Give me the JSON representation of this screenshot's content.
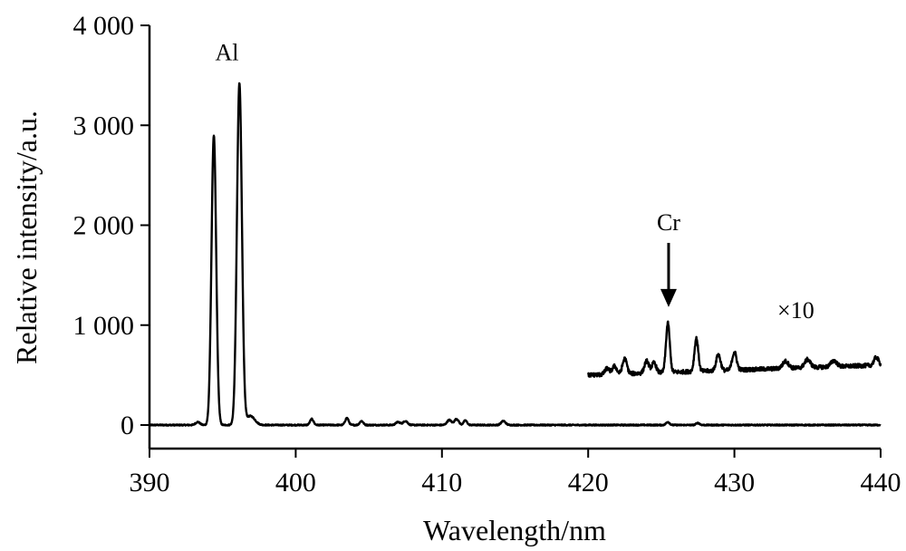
{
  "chart_data": {
    "type": "line",
    "xlabel": "Wavelength/nm",
    "ylabel": "Relative intensity/a.u.",
    "xlim": [
      390,
      440
    ],
    "ylim": [
      0,
      4000
    ],
    "x_ticks": [
      390,
      400,
      410,
      420,
      430,
      440
    ],
    "x_tick_labels": [
      "390",
      "400",
      "410",
      "420",
      "430",
      "440"
    ],
    "y_ticks": [
      0,
      1000,
      2000,
      3000,
      4000
    ],
    "y_tick_labels": [
      "0",
      "1 000",
      "2 000",
      "3 000",
      "4 000"
    ],
    "grid": false,
    "annotations": [
      {
        "text": "Al",
        "x": 395.3,
        "y": 3650
      },
      {
        "text": "Cr",
        "x": 425.5,
        "y": 1950,
        "arrow_to": {
          "x": 425.5,
          "y": 1180
        }
      },
      {
        "text": "×10",
        "x": 434.2,
        "y": 1070
      }
    ],
    "series": [
      {
        "baseline": 0,
        "peaks": [
          [
            393.3,
            30,
            0.15
          ],
          [
            394.4,
            2900,
            0.16
          ],
          [
            396.15,
            3420,
            0.17
          ],
          [
            396.9,
            90,
            0.3
          ],
          [
            401.1,
            60,
            0.12
          ],
          [
            403.5,
            70,
            0.12
          ],
          [
            404.5,
            40,
            0.12
          ],
          [
            407.0,
            30,
            0.15
          ],
          [
            407.5,
            40,
            0.15
          ],
          [
            410.5,
            50,
            0.15
          ],
          [
            411.0,
            60,
            0.15
          ],
          [
            411.6,
            45,
            0.12
          ],
          [
            414.2,
            40,
            0.15
          ],
          [
            425.45,
            30,
            0.12
          ],
          [
            427.5,
            20,
            0.12
          ]
        ]
      },
      {
        "scale_factor": "×10",
        "x_range": [
          420,
          440
        ],
        "baseline_start": 500,
        "baseline_end": 600,
        "peaks": [
          [
            421.3,
            60,
            0.15
          ],
          [
            421.8,
            80,
            0.15
          ],
          [
            422.5,
            150,
            0.15
          ],
          [
            424.0,
            120,
            0.15
          ],
          [
            424.5,
            100,
            0.15
          ],
          [
            425.45,
            490,
            0.13
          ],
          [
            427.4,
            330,
            0.13
          ],
          [
            428.9,
            160,
            0.15
          ],
          [
            430.0,
            180,
            0.15
          ],
          [
            433.5,
            70,
            0.2
          ],
          [
            435.0,
            80,
            0.2
          ],
          [
            436.8,
            60,
            0.2
          ],
          [
            439.7,
            80,
            0.15
          ]
        ]
      }
    ]
  }
}
